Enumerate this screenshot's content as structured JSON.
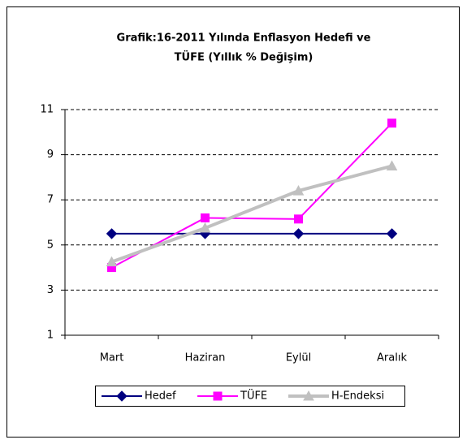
{
  "chart_data": {
    "type": "line",
    "title": [
      "Grafik:16-2011 Yılında Enflasyon Hedefi ve",
      "TÜFE (Yıllık % Değişim)"
    ],
    "categories": [
      "Mart",
      "Haziran",
      "Eylül",
      "Aralık"
    ],
    "series": [
      {
        "name": "Hedef",
        "color": "#000080",
        "marker": "diamond",
        "values": [
          5.5,
          5.5,
          5.5,
          5.5
        ]
      },
      {
        "name": "TÜFE",
        "color": "#ff00ff",
        "marker": "square",
        "values": [
          4.0,
          6.2,
          6.15,
          10.4
        ]
      },
      {
        "name": "H-Endeksi",
        "color": "#c0c0c0",
        "marker": "triangle",
        "values": [
          4.25,
          5.75,
          7.4,
          8.5
        ]
      }
    ],
    "ylim": [
      1,
      11
    ],
    "yticks": [
      1,
      3,
      5,
      7,
      9,
      11
    ],
    "grid": true,
    "legend": "bottom"
  }
}
